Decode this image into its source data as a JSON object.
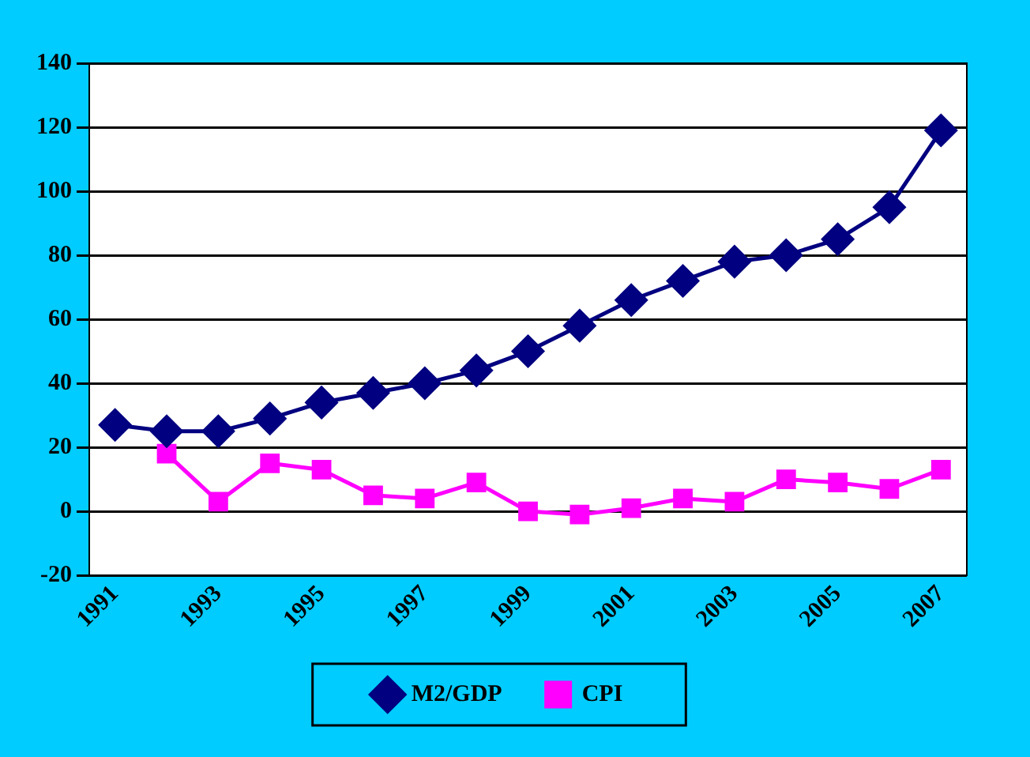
{
  "chart_data": {
    "type": "line",
    "categories": [
      "1991",
      null,
      "1993",
      null,
      "1995",
      null,
      "1997",
      null,
      "1999",
      null,
      "2001",
      null,
      "2003",
      null,
      "2005",
      null,
      "2007"
    ],
    "series": [
      {
        "name": "M2/GDP",
        "color": "#000080",
        "marker": "diamond",
        "values": [
          27,
          25,
          25,
          29,
          34,
          37,
          40,
          44,
          50,
          58,
          66,
          72,
          78,
          80,
          85,
          95,
          119
        ]
      },
      {
        "name": "CPI",
        "color": "#ff00ff",
        "marker": "square",
        "values": [
          null,
          18,
          3,
          15,
          13,
          5,
          4,
          9,
          0,
          -1,
          1,
          4,
          3,
          10,
          9,
          7,
          13
        ]
      }
    ],
    "ylim": [
      -20,
      140
    ],
    "yticks": [
      -20,
      0,
      20,
      40,
      60,
      80,
      100,
      120,
      140
    ],
    "grid": "y",
    "legend": "bottom"
  }
}
